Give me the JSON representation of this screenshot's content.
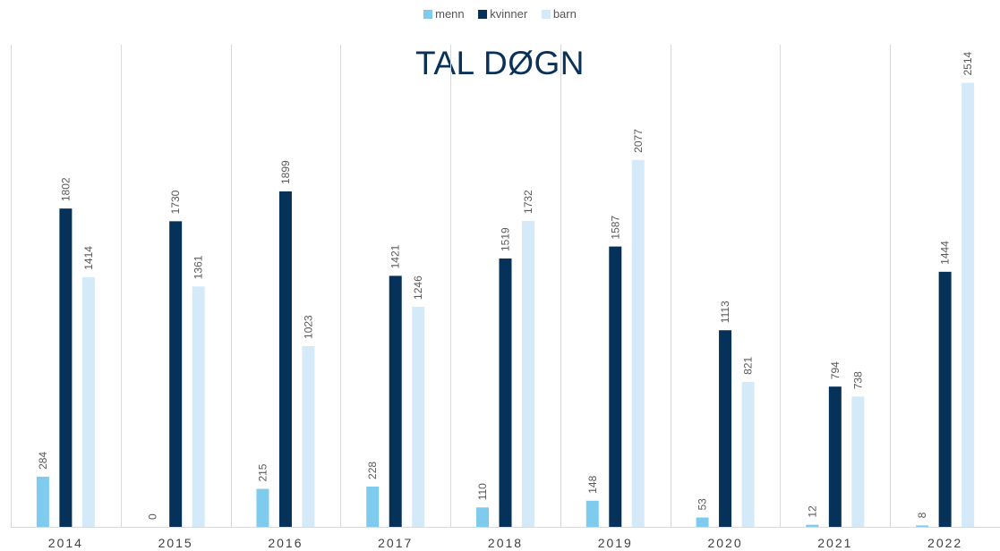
{
  "chart_data": {
    "type": "bar",
    "title": "TAL DØGN",
    "categories": [
      "2014",
      "2015",
      "2016",
      "2017",
      "2018",
      "2019",
      "2020",
      "2021",
      "2022"
    ],
    "series": [
      {
        "name": "menn",
        "color": "#7ecbee",
        "values": [
          284,
          0,
          215,
          228,
          110,
          148,
          53,
          12,
          8
        ]
      },
      {
        "name": "kvinner",
        "color": "#06325a",
        "values": [
          1802,
          1730,
          1899,
          1421,
          1519,
          1587,
          1113,
          794,
          1444
        ]
      },
      {
        "name": "barn",
        "color": "#d5eaf8",
        "values": [
          1414,
          1361,
          1023,
          1246,
          1732,
          2077,
          821,
          738,
          2514
        ]
      }
    ],
    "ylim": [
      0,
      2780
    ],
    "legend_position": "top-center",
    "grid": "vertical category separators",
    "data_labels": true
  }
}
